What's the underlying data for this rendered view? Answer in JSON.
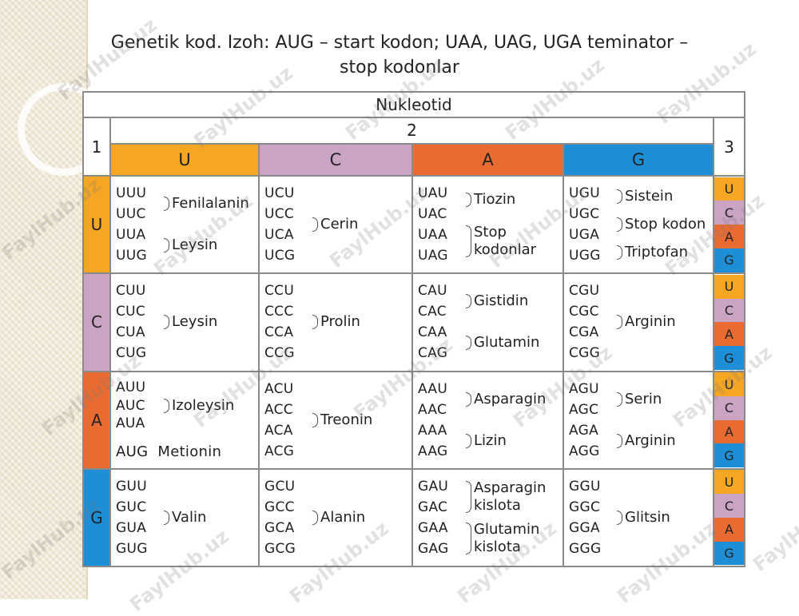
{
  "slide": {
    "title": "Genetik kod. Izoh: AUG – start kodon; UAA, UAG, UGA teminator – stop kodonlar"
  },
  "table": {
    "header_top": "Nukleotid",
    "label_1": "1",
    "label_2": "2",
    "label_3": "3",
    "columns": [
      "U",
      "C",
      "A",
      "G"
    ],
    "third_positions": [
      "U",
      "C",
      "A",
      "G"
    ],
    "rows": [
      {
        "base": "U",
        "cells": [
          {
            "codons": [
              "UUU",
              "UUC",
              "UUA",
              "UUG"
            ],
            "groups": [
              "Fenilalanin",
              "Leysin"
            ]
          },
          {
            "codons": [
              "UCU",
              "UCC",
              "UCA",
              "UCG"
            ],
            "groups": [
              "Cerin"
            ]
          },
          {
            "codons": [
              "UAU",
              "UAC",
              "UAA",
              "UAG"
            ],
            "groups": [
              "Tiozin",
              "Stop\nkodonlar"
            ]
          },
          {
            "codons": [
              "UGU",
              "UGC",
              "UGA",
              "UGG"
            ],
            "groups": [
              "Sistein",
              "Stop kodon",
              "Triptofan"
            ]
          }
        ]
      },
      {
        "base": "C",
        "cells": [
          {
            "codons": [
              "CUU",
              "CUC",
              "CUA",
              "CUG"
            ],
            "groups": [
              "Leysin"
            ]
          },
          {
            "codons": [
              "CCU",
              "CCC",
              "CCA",
              "CCG"
            ],
            "groups": [
              "Prolin"
            ]
          },
          {
            "codons": [
              "CAU",
              "CAC",
              "CAA",
              "CAG"
            ],
            "groups": [
              "Gistidin",
              "Glutamin"
            ]
          },
          {
            "codons": [
              "CGU",
              "CGC",
              "CGA",
              "CGG"
            ],
            "groups": [
              "Arginin"
            ]
          }
        ]
      },
      {
        "base": "A",
        "cells": [
          {
            "codons": [
              "AUU",
              "AUC",
              "AUA"
            ],
            "groups": [
              "Izoleysin"
            ],
            "extra": "AUG Metionin"
          },
          {
            "codons": [
              "ACU",
              "ACC",
              "ACA",
              "ACG"
            ],
            "groups": [
              "Treonin"
            ]
          },
          {
            "codons": [
              "AAU",
              "AAC",
              "AAA",
              "AAG"
            ],
            "groups": [
              "Asparagin",
              "Lizin"
            ]
          },
          {
            "codons": [
              "AGU",
              "AGC",
              "AGA",
              "AGG"
            ],
            "groups": [
              "Serin",
              "Arginin"
            ]
          }
        ]
      },
      {
        "base": "G",
        "cells": [
          {
            "codons": [
              "GUU",
              "GUC",
              "GUA",
              "GUG"
            ],
            "groups": [
              "Valin"
            ]
          },
          {
            "codons": [
              "GCU",
              "GCC",
              "GCA",
              "GCG"
            ],
            "groups": [
              "Alanin"
            ]
          },
          {
            "codons": [
              "GAU",
              "GAC",
              "GAA",
              "GAG"
            ],
            "groups": [
              "Asparagin\nkislota",
              "Glutamin\nkislota"
            ]
          },
          {
            "codons": [
              "GGU",
              "GGC",
              "GGA",
              "GGG"
            ],
            "groups": [
              "Glitsin"
            ]
          }
        ]
      }
    ]
  },
  "watermark": "FaylHub.uz",
  "colors": {
    "U": "#f5a623",
    "C": "#c9a4c3",
    "A": "#ea6b32",
    "G": "#1e8fd6",
    "strip": "#efe6cf"
  }
}
